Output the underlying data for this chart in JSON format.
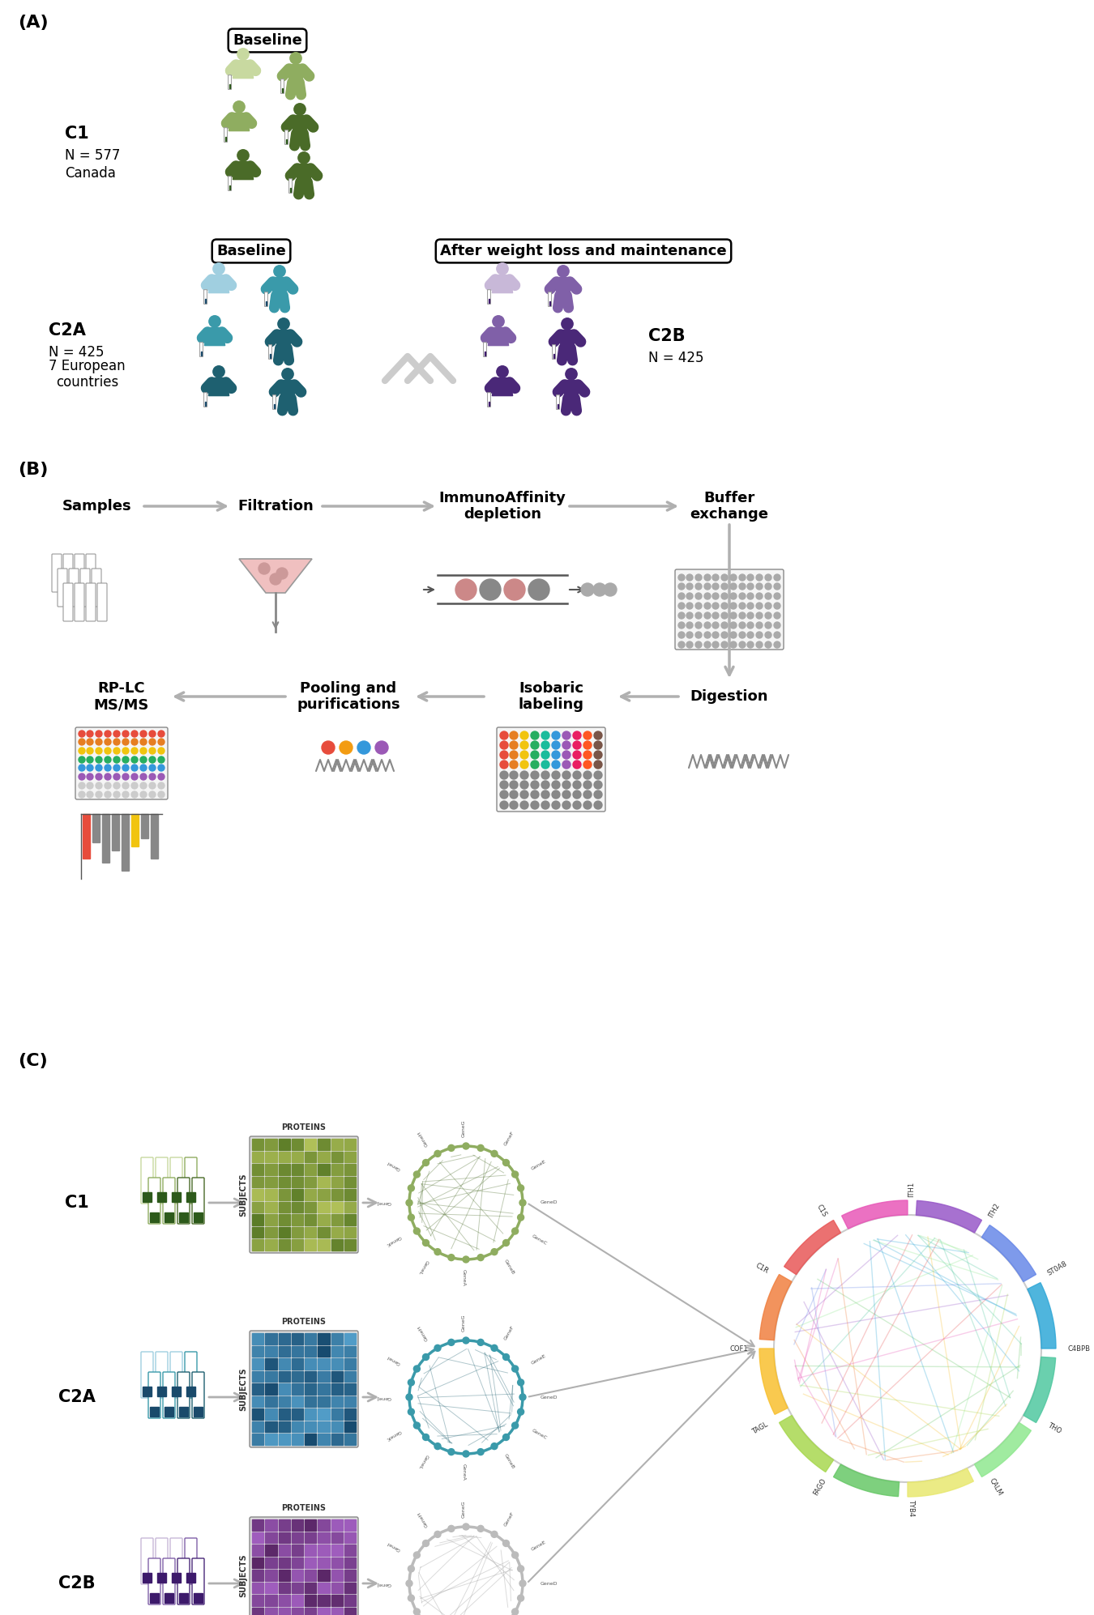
{
  "panel_A_label": "(A)",
  "panel_B_label": "(B)",
  "panel_C_label": "(C)",
  "bg_color": "#ffffff",
  "label_fontsize": 16,
  "text_fontsize": 11,
  "green_light": "#c8d9a0",
  "green_mid": "#8fad60",
  "green_dark": "#4a6b28",
  "blue_light": "#a0cfe0",
  "blue_mid": "#3a9aaa",
  "blue_dark": "#1e6070",
  "purple_light": "#c8b8d8",
  "purple_mid": "#8060a8",
  "purple_dark": "#4a2878",
  "gray_arrow": "#b0b0b0",
  "c1_label": "C1",
  "c1_n": "N = 577",
  "c1_country": "Canada",
  "c2a_label": "C2A",
  "c2a_n": "N = 425",
  "c2a_country": "7 European\ncountries",
  "c2b_label": "C2B",
  "c2b_n": "N = 425",
  "baseline_label": "Baseline",
  "after_label": "After weight loss and maintenance",
  "b_samples": "Samples",
  "b_filtration": "Filtration",
  "b_immuno": "ImmunoAffinity\ndepletion",
  "b_buffer": "Buffer\nexchange",
  "b_rplc": "RP-LC\nMS/MS",
  "b_pooling": "Pooling and\npurifications",
  "b_isobaric": "Isobaric\nlabeling",
  "b_digestion": "Digestion",
  "c_proteins_label": "PROTEINS",
  "c_subjects_label": "SUBJECTS"
}
